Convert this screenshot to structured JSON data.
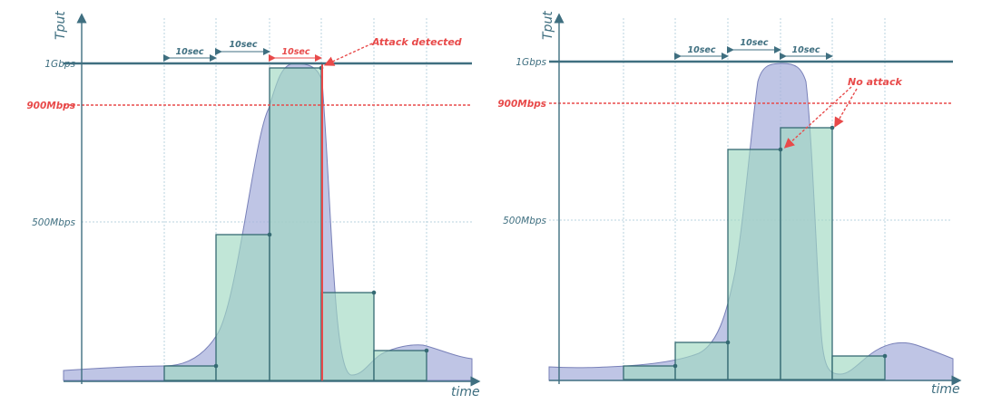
{
  "colors": {
    "axis": "#3f6f80",
    "capacity_line": "#3f6f80",
    "threshold": "#e84a4a",
    "grid": "#b9d3df",
    "curve_fill": "#a9b2dc",
    "curve_stroke": "#7880b8",
    "bar_fill": "#9fd8c2",
    "bar_stroke": "#356a73",
    "detect_line": "#e84a4a",
    "label_teal": "#3f6f80",
    "label_red": "#e84a4a"
  },
  "chart_data": [
    {
      "type": "area",
      "panel": "left",
      "ylabel": "Tput",
      "xlabel": "time",
      "y_tick_labels": [
        "1Gbps",
        "900Mbps",
        "500Mbps"
      ],
      "threshold_label": "900Mbps",
      "windows": [
        {
          "label": "10sec",
          "color": "teal"
        },
        {
          "label": "10sec",
          "color": "teal"
        },
        {
          "label": "10sec",
          "color": "red"
        }
      ],
      "window_averages_mbps": [
        30,
        470,
        980,
        250,
        60
      ],
      "annotation": "Attack detected"
    },
    {
      "type": "area",
      "panel": "right",
      "ylabel": "Tput",
      "xlabel": "time",
      "y_tick_labels": [
        "1Gbps",
        "900Mbps",
        "500Mbps"
      ],
      "threshold_label": "900Mbps",
      "windows": [
        {
          "label": "10sec",
          "color": "teal"
        },
        {
          "label": "10sec",
          "color": "teal"
        },
        {
          "label": "10sec",
          "color": "teal"
        }
      ],
      "window_averages_mbps": [
        30,
        115,
        720,
        790,
        70
      ],
      "annotation": "No attack"
    }
  ]
}
